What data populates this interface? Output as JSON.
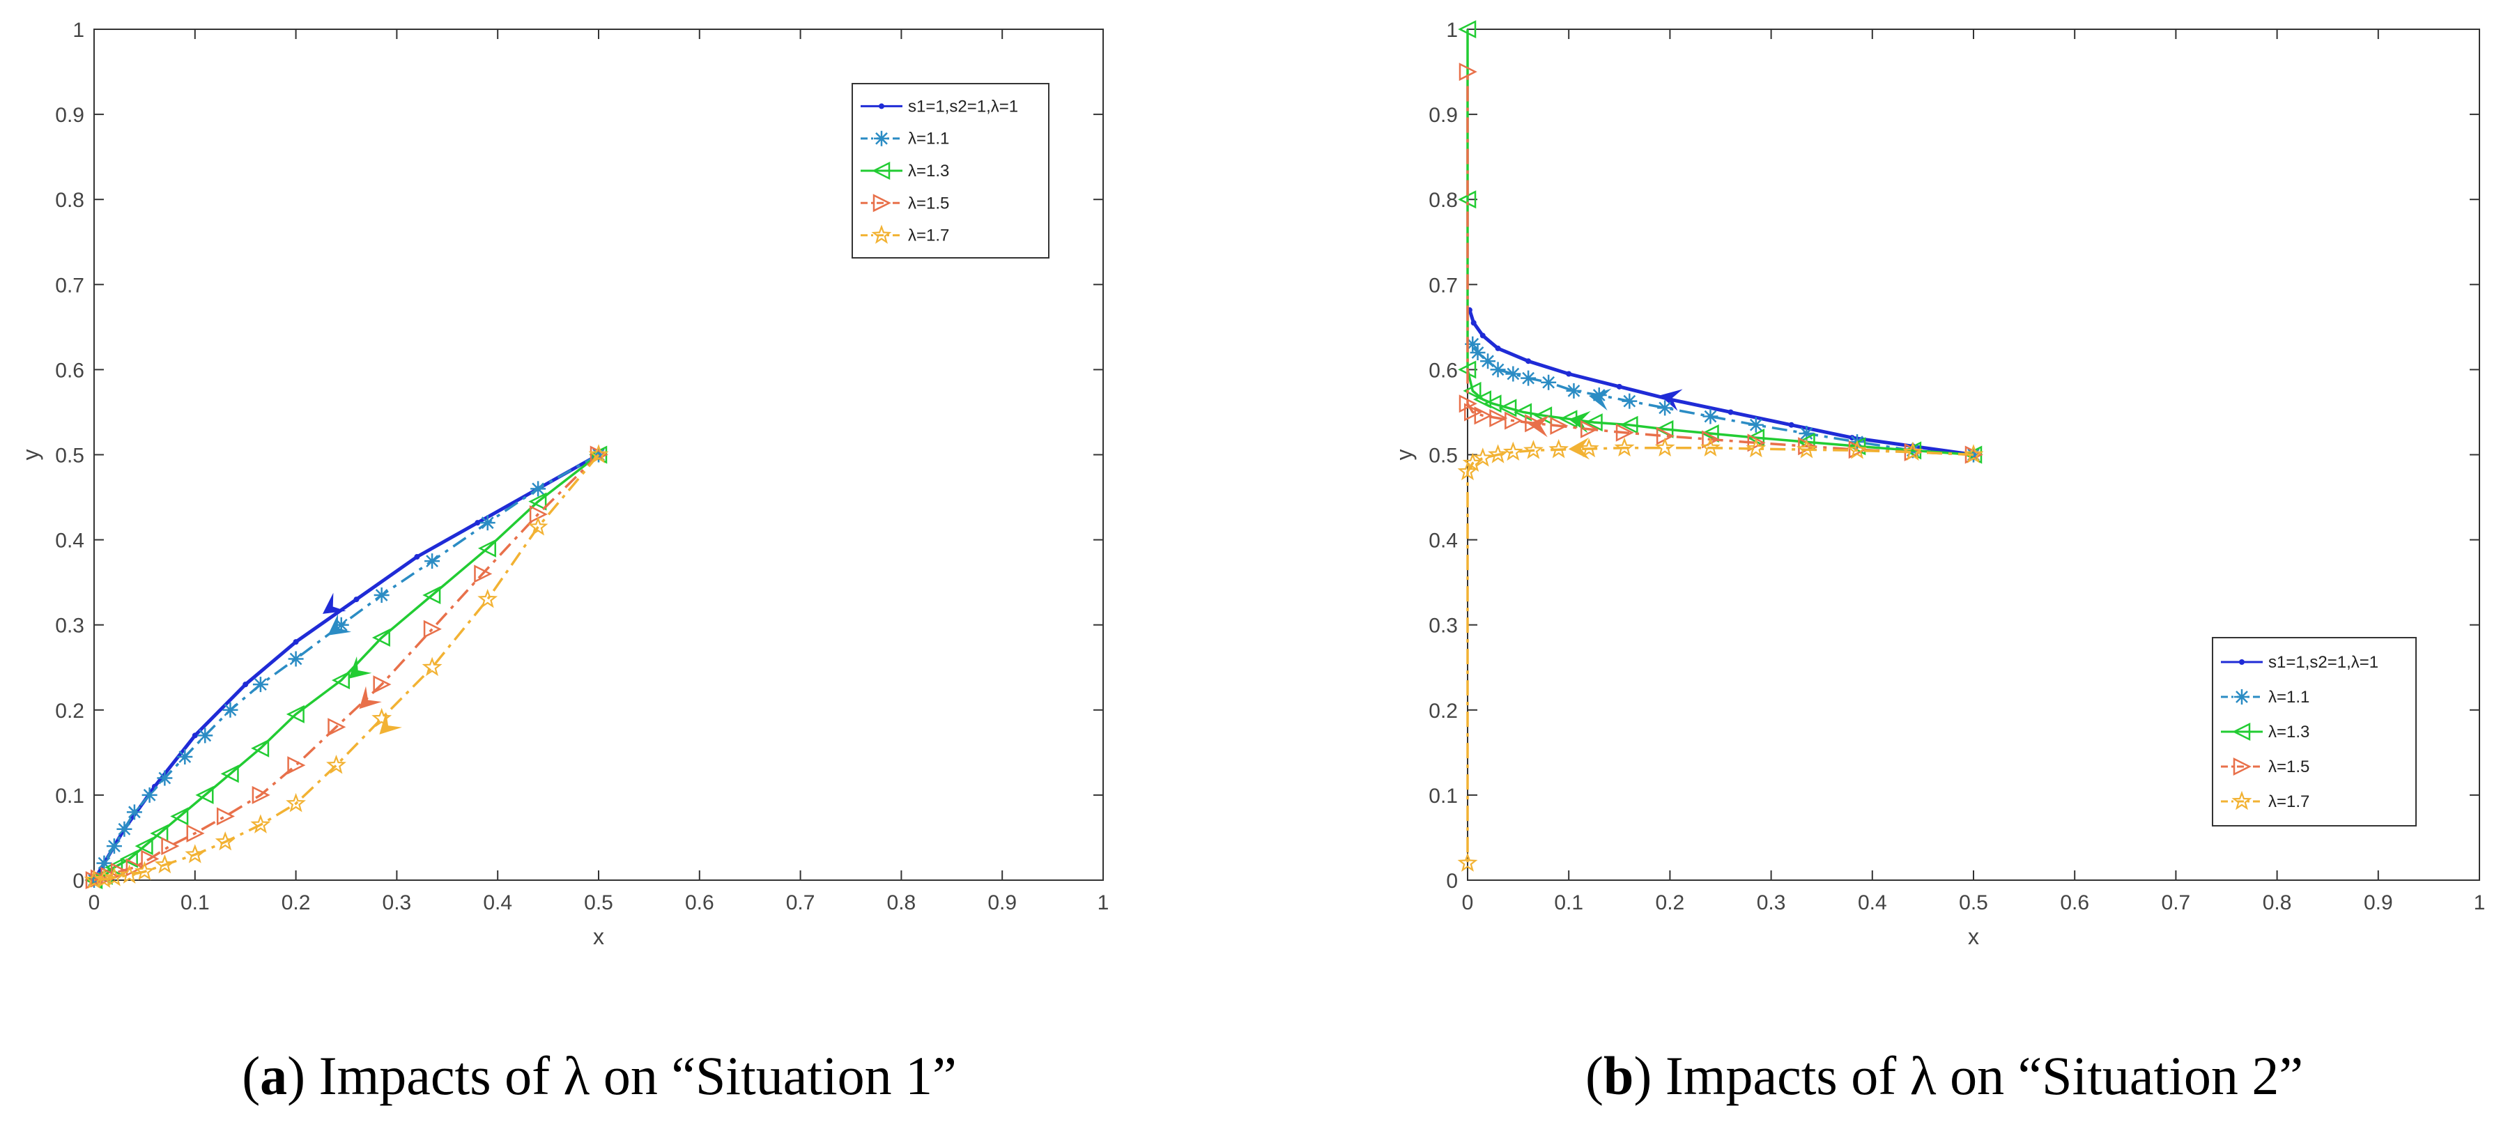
{
  "chart_data": [
    {
      "type": "line",
      "subplot_label": "a",
      "caption": "Impacts of λ on “Situation 1”",
      "xlabel": "x",
      "ylabel": "y",
      "xlim": [
        0,
        1
      ],
      "ylim": [
        0,
        1
      ],
      "xticks": [
        "0",
        "0.1",
        "0.2",
        "0.3",
        "0.4",
        "0.5",
        "0.6",
        "0.7",
        "0.8",
        "0.9",
        "1"
      ],
      "yticks": [
        "0",
        "0.1",
        "0.2",
        "0.3",
        "0.4",
        "0.5",
        "0.6",
        "0.7",
        "0.8",
        "0.9",
        "1"
      ],
      "legend_position": "top-right",
      "series": [
        {
          "name": "s1=1,s2=1,λ=1",
          "color": "#1f2bd6",
          "marker": "dot",
          "dash": "solid",
          "x": [
            0.5,
            0.44,
            0.38,
            0.32,
            0.26,
            0.2,
            0.15,
            0.1,
            0.06,
            0.03,
            0.01,
            0
          ],
          "y": [
            0.5,
            0.46,
            0.42,
            0.38,
            0.33,
            0.28,
            0.23,
            0.17,
            0.11,
            0.06,
            0.02,
            0
          ],
          "arrow_at": [
            0.235,
            0.32
          ]
        },
        {
          "name": "λ=1.1",
          "color": "#2b8cc4",
          "marker": "asterisk",
          "dash": "dashdot",
          "x": [
            0.5,
            0.44,
            0.39,
            0.335,
            0.285,
            0.245,
            0.2,
            0.165,
            0.135,
            0.11,
            0.09,
            0.07,
            0.055,
            0.04,
            0.03,
            0.02,
            0.01,
            0
          ],
          "y": [
            0.5,
            0.46,
            0.42,
            0.375,
            0.335,
            0.3,
            0.26,
            0.23,
            0.2,
            0.17,
            0.145,
            0.12,
            0.1,
            0.08,
            0.06,
            0.04,
            0.02,
            0
          ],
          "arrow_at": [
            0.24,
            0.295
          ]
        },
        {
          "name": "λ=1.3",
          "color": "#22cc33",
          "marker": "triangle-left",
          "dash": "solid",
          "x": [
            0.5,
            0.44,
            0.39,
            0.335,
            0.285,
            0.245,
            0.2,
            0.165,
            0.135,
            0.11,
            0.085,
            0.065,
            0.05,
            0.035,
            0.02,
            0.01,
            0
          ],
          "y": [
            0.5,
            0.445,
            0.39,
            0.335,
            0.285,
            0.235,
            0.195,
            0.155,
            0.125,
            0.1,
            0.075,
            0.055,
            0.04,
            0.025,
            0.015,
            0.005,
            0
          ],
          "arrow_at": [
            0.26,
            0.245
          ]
        },
        {
          "name": "λ=1.5",
          "color": "#e8704a",
          "marker": "triangle-right",
          "dash": "dashdot",
          "x": [
            0.5,
            0.44,
            0.385,
            0.335,
            0.285,
            0.24,
            0.2,
            0.165,
            0.13,
            0.1,
            0.075,
            0.055,
            0.04,
            0.025,
            0.015,
            0.005,
            0
          ],
          "y": [
            0.5,
            0.43,
            0.36,
            0.295,
            0.23,
            0.18,
            0.135,
            0.1,
            0.075,
            0.055,
            0.04,
            0.025,
            0.015,
            0.01,
            0.005,
            0.002,
            0
          ],
          "arrow_at": [
            0.27,
            0.21
          ]
        },
        {
          "name": "λ=1.7",
          "color": "#f2b233",
          "marker": "star",
          "dash": "dashdot",
          "x": [
            0.5,
            0.44,
            0.39,
            0.335,
            0.285,
            0.24,
            0.2,
            0.165,
            0.13,
            0.1,
            0.07,
            0.05,
            0.035,
            0.02,
            0.01,
            0
          ],
          "y": [
            0.5,
            0.415,
            0.33,
            0.25,
            0.19,
            0.135,
            0.09,
            0.065,
            0.045,
            0.03,
            0.018,
            0.01,
            0.006,
            0.003,
            0.001,
            0
          ],
          "arrow_at": [
            0.29,
            0.18
          ]
        }
      ]
    },
    {
      "type": "line",
      "subplot_label": "b",
      "caption": "Impacts of λ on “Situation 2”",
      "xlabel": "x",
      "ylabel": "y",
      "xlim": [
        0,
        1
      ],
      "ylim": [
        0,
        1
      ],
      "xticks": [
        "0",
        "0.1",
        "0.2",
        "0.3",
        "0.4",
        "0.5",
        "0.6",
        "0.7",
        "0.8",
        "0.9",
        "1"
      ],
      "yticks": [
        "0",
        "0.1",
        "0.2",
        "0.3",
        "0.4",
        "0.5",
        "0.6",
        "0.7",
        "0.8",
        "0.9",
        "1"
      ],
      "legend_position": "bottom-right",
      "series": [
        {
          "name": "s1=1,s2=1,λ=1",
          "color": "#1f2bd6",
          "marker": "dot",
          "dash": "solid",
          "x": [
            0.5,
            0.44,
            0.38,
            0.32,
            0.26,
            0.2,
            0.15,
            0.1,
            0.06,
            0.03,
            0.015,
            0.006,
            0.002
          ],
          "y": [
            0.5,
            0.51,
            0.52,
            0.535,
            0.55,
            0.565,
            0.58,
            0.595,
            0.61,
            0.625,
            0.64,
            0.655,
            0.67
          ],
          "arrow_at": [
            0.2,
            0.567
          ]
        },
        {
          "name": "λ=1.1",
          "color": "#2b8cc4",
          "marker": "asterisk",
          "dash": "dashdot",
          "x": [
            0.5,
            0.44,
            0.385,
            0.335,
            0.285,
            0.24,
            0.195,
            0.16,
            0.13,
            0.105,
            0.08,
            0.06,
            0.045,
            0.03,
            0.02,
            0.01,
            0.005
          ],
          "y": [
            0.5,
            0.505,
            0.515,
            0.525,
            0.535,
            0.545,
            0.555,
            0.563,
            0.57,
            0.575,
            0.585,
            0.59,
            0.595,
            0.6,
            0.61,
            0.62,
            0.63
          ],
          "arrow_at": [
            0.13,
            0.567
          ]
        },
        {
          "name": "λ=1.3",
          "color": "#22cc33",
          "marker": "triangle-left",
          "dash": "solid",
          "x": [
            0.5,
            0.44,
            0.385,
            0.335,
            0.285,
            0.24,
            0.195,
            0.16,
            0.125,
            0.1,
            0.075,
            0.055,
            0.04,
            0.025,
            0.015,
            0.005,
            0,
            0,
            0
          ],
          "y": [
            0.5,
            0.505,
            0.51,
            0.515,
            0.52,
            0.525,
            0.53,
            0.535,
            0.538,
            0.542,
            0.546,
            0.55,
            0.555,
            0.56,
            0.565,
            0.575,
            0.6,
            0.8,
            1.0
          ],
          "arrow_at": [
            0.11,
            0.54
          ]
        },
        {
          "name": "λ=1.5",
          "color": "#e8704a",
          "marker": "triangle-right",
          "dash": "dashdot",
          "x": [
            0.5,
            0.44,
            0.385,
            0.335,
            0.285,
            0.24,
            0.195,
            0.155,
            0.12,
            0.09,
            0.065,
            0.045,
            0.03,
            0.015,
            0.005,
            0,
            0
          ],
          "y": [
            0.5,
            0.503,
            0.506,
            0.51,
            0.514,
            0.518,
            0.522,
            0.526,
            0.53,
            0.534,
            0.537,
            0.54,
            0.543,
            0.546,
            0.55,
            0.56,
            0.95
          ],
          "arrow_at": [
            0.07,
            0.535
          ]
        },
        {
          "name": "λ=1.7",
          "color": "#f2b233",
          "marker": "star",
          "dash": "dashdot",
          "x": [
            0.5,
            0.44,
            0.385,
            0.335,
            0.285,
            0.24,
            0.195,
            0.155,
            0.12,
            0.09,
            0.065,
            0.045,
            0.03,
            0.015,
            0.005,
            0,
            0
          ],
          "y": [
            0.5,
            0.503,
            0.505,
            0.506,
            0.507,
            0.508,
            0.508,
            0.508,
            0.507,
            0.506,
            0.505,
            0.503,
            0.5,
            0.496,
            0.49,
            0.48,
            0.02
          ],
          "arrow_at": [
            0.11,
            0.507
          ]
        }
      ]
    }
  ]
}
